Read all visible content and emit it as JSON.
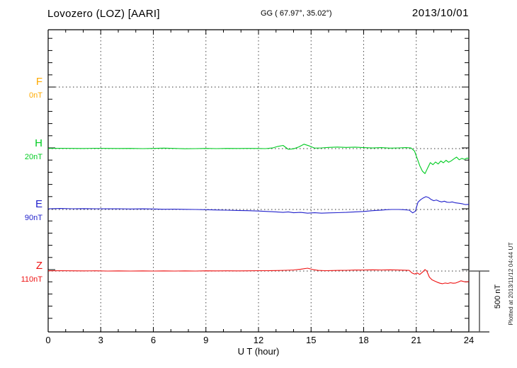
{
  "header": {
    "station_title": "Lovozero (LOZ)  [AARI]",
    "coordinates": "GG ( 67.97°,  35.02°)",
    "date": "2013/10/01"
  },
  "x_axis": {
    "label": "U T (hour)",
    "ticks": [
      "0",
      "3",
      "6",
      "9",
      "12",
      "15",
      "18",
      "21",
      "24"
    ]
  },
  "scale_bar": {
    "label": "500 nT",
    "span_nT": 500
  },
  "footer_note": "Plotted at 2013/11/12 04:44 UT",
  "components": [
    {
      "id": "F",
      "label": "F",
      "baseline_label": "0nT",
      "color": "#ffaa00"
    },
    {
      "id": "H",
      "label": "H",
      "baseline_label": "20nT",
      "color": "#00cc22"
    },
    {
      "id": "E",
      "label": "E",
      "baseline_label": "90nT",
      "color": "#2222cc"
    },
    {
      "id": "Z",
      "label": "Z",
      "baseline_label": "110nT",
      "color": "#ee1111"
    }
  ],
  "chart_data": {
    "type": "line",
    "title": "Lovozero (LOZ) [AARI] magnetogram 2013/10/01",
    "xlabel": "U T (hour)",
    "x_range": [
      0,
      24
    ],
    "x_ticks": [
      0,
      3,
      6,
      9,
      12,
      15,
      18,
      21,
      24
    ],
    "y_minor_tick_nT": 100,
    "baseline_separation_nT": 500,
    "grid": "dotted vertical every 3 h, dotted horizontal baseline per component",
    "legend_position": "left margin (component letters with baseline values)",
    "series": [
      {
        "name": "F",
        "baseline_nT": 0,
        "color": "#ffaa00",
        "points": []
      },
      {
        "name": "H",
        "baseline_nT": 20,
        "color": "#00cc22",
        "points": [
          [
            0,
            22
          ],
          [
            0.7,
            23
          ],
          [
            1.4,
            22
          ],
          [
            2,
            21
          ],
          [
            2.7,
            23
          ],
          [
            3.4,
            22
          ],
          [
            4,
            21
          ],
          [
            4.7,
            22
          ],
          [
            5.4,
            20
          ],
          [
            6,
            22
          ],
          [
            6.6,
            24
          ],
          [
            7.2,
            22
          ],
          [
            7.8,
            19
          ],
          [
            8.4,
            20
          ],
          [
            9,
            22
          ],
          [
            9.6,
            20
          ],
          [
            10.2,
            22
          ],
          [
            10.8,
            21
          ],
          [
            11.4,
            22
          ],
          [
            12,
            21
          ],
          [
            12.4,
            20
          ],
          [
            12.8,
            25
          ],
          [
            13.1,
            38
          ],
          [
            13.4,
            46
          ],
          [
            13.7,
            14
          ],
          [
            14,
            18
          ],
          [
            14.3,
            34
          ],
          [
            14.6,
            56
          ],
          [
            14.9,
            42
          ],
          [
            15.2,
            24
          ],
          [
            15.6,
            26
          ],
          [
            16,
            30
          ],
          [
            16.5,
            33
          ],
          [
            17,
            30
          ],
          [
            17.5,
            32
          ],
          [
            18,
            28
          ],
          [
            18.5,
            25
          ],
          [
            19,
            28
          ],
          [
            19.5,
            24
          ],
          [
            20,
            26
          ],
          [
            20.4,
            28
          ],
          [
            20.7,
            25
          ],
          [
            20.9,
            0
          ],
          [
            21.05,
            -60
          ],
          [
            21.2,
            -120
          ],
          [
            21.35,
            -165
          ],
          [
            21.5,
            -185
          ],
          [
            21.65,
            -140
          ],
          [
            21.8,
            -95
          ],
          [
            21.95,
            -112
          ],
          [
            22.1,
            -90
          ],
          [
            22.25,
            -106
          ],
          [
            22.4,
            -82
          ],
          [
            22.55,
            -96
          ],
          [
            22.7,
            -76
          ],
          [
            22.85,
            -92
          ],
          [
            23,
            -80
          ],
          [
            23.15,
            -64
          ],
          [
            23.3,
            -50
          ],
          [
            23.45,
            -72
          ],
          [
            23.6,
            -60
          ],
          [
            23.75,
            -68
          ],
          [
            23.9,
            -58
          ],
          [
            24,
            -60
          ]
        ]
      },
      {
        "name": "E",
        "baseline_nT": 90,
        "color": "#2222cc",
        "points": [
          [
            0,
            96
          ],
          [
            0.7,
            98
          ],
          [
            1.4,
            96
          ],
          [
            2,
            97
          ],
          [
            2.7,
            96
          ],
          [
            3.4,
            95
          ],
          [
            4,
            96
          ],
          [
            4.7,
            94
          ],
          [
            5.4,
            95
          ],
          [
            6,
            94
          ],
          [
            6.6,
            92
          ],
          [
            7.2,
            93
          ],
          [
            7.8,
            91
          ],
          [
            8.4,
            90
          ],
          [
            9,
            88
          ],
          [
            9.6,
            86
          ],
          [
            10.2,
            84
          ],
          [
            10.8,
            82
          ],
          [
            11.4,
            80
          ],
          [
            12,
            77
          ],
          [
            12.5,
            74
          ],
          [
            13,
            70
          ],
          [
            13.4,
            66
          ],
          [
            13.7,
            70
          ],
          [
            14,
            63
          ],
          [
            14.4,
            66
          ],
          [
            14.8,
            60
          ],
          [
            15.2,
            63
          ],
          [
            15.6,
            60
          ],
          [
            16,
            62
          ],
          [
            16.5,
            64
          ],
          [
            17,
            66
          ],
          [
            17.5,
            70
          ],
          [
            18,
            74
          ],
          [
            18.5,
            80
          ],
          [
            19,
            85
          ],
          [
            19.3,
            88
          ],
          [
            19.6,
            90
          ],
          [
            20,
            90
          ],
          [
            20.3,
            88
          ],
          [
            20.6,
            84
          ],
          [
            20.8,
            62
          ],
          [
            20.95,
            76
          ],
          [
            21.1,
            150
          ],
          [
            21.25,
            170
          ],
          [
            21.4,
            185
          ],
          [
            21.55,
            195
          ],
          [
            21.7,
            188
          ],
          [
            21.85,
            172
          ],
          [
            22,
            162
          ],
          [
            22.15,
            168
          ],
          [
            22.3,
            158
          ],
          [
            22.45,
            152
          ],
          [
            22.6,
            158
          ],
          [
            22.75,
            150
          ],
          [
            22.9,
            148
          ],
          [
            23.05,
            152
          ],
          [
            23.2,
            146
          ],
          [
            23.35,
            143
          ],
          [
            23.5,
            140
          ],
          [
            23.65,
            136
          ],
          [
            23.8,
            130
          ],
          [
            24,
            132
          ]
        ]
      },
      {
        "name": "Z",
        "baseline_nT": 110,
        "color": "#ee1111",
        "points": [
          [
            0,
            112
          ],
          [
            0.7,
            113
          ],
          [
            1.4,
            112
          ],
          [
            2,
            111
          ],
          [
            2.7,
            112
          ],
          [
            3.4,
            110
          ],
          [
            4,
            111
          ],
          [
            4.7,
            110
          ],
          [
            5.4,
            111
          ],
          [
            6,
            110
          ],
          [
            6.6,
            111
          ],
          [
            7.2,
            110
          ],
          [
            7.8,
            111
          ],
          [
            8.4,
            110
          ],
          [
            9,
            112
          ],
          [
            9.6,
            111
          ],
          [
            10.2,
            112
          ],
          [
            10.8,
            111
          ],
          [
            11.4,
            112
          ],
          [
            12,
            113
          ],
          [
            12.5,
            113
          ],
          [
            13,
            114
          ],
          [
            13.5,
            116
          ],
          [
            14,
            119
          ],
          [
            14.4,
            125
          ],
          [
            14.8,
            133
          ],
          [
            15.1,
            122
          ],
          [
            15.4,
            115
          ],
          [
            15.8,
            113
          ],
          [
            16.2,
            114
          ],
          [
            16.6,
            115
          ],
          [
            17,
            116
          ],
          [
            17.5,
            118
          ],
          [
            18,
            119
          ],
          [
            18.5,
            120
          ],
          [
            19,
            119
          ],
          [
            19.5,
            120
          ],
          [
            20,
            118
          ],
          [
            20.3,
            117
          ],
          [
            20.6,
            115
          ],
          [
            20.75,
            95
          ],
          [
            20.9,
            85
          ],
          [
            21.05,
            95
          ],
          [
            21.2,
            82
          ],
          [
            21.35,
            100
          ],
          [
            21.5,
            122
          ],
          [
            21.6,
            110
          ],
          [
            21.75,
            60
          ],
          [
            21.9,
            38
          ],
          [
            22.05,
            28
          ],
          [
            22.2,
            18
          ],
          [
            22.35,
            10
          ],
          [
            22.5,
            6
          ],
          [
            22.65,
            12
          ],
          [
            22.8,
            8
          ],
          [
            22.95,
            14
          ],
          [
            23.1,
            10
          ],
          [
            23.25,
            12
          ],
          [
            23.4,
            20
          ],
          [
            23.55,
            30
          ],
          [
            23.7,
            24
          ],
          [
            23.85,
            20
          ],
          [
            24,
            25
          ]
        ]
      }
    ]
  }
}
